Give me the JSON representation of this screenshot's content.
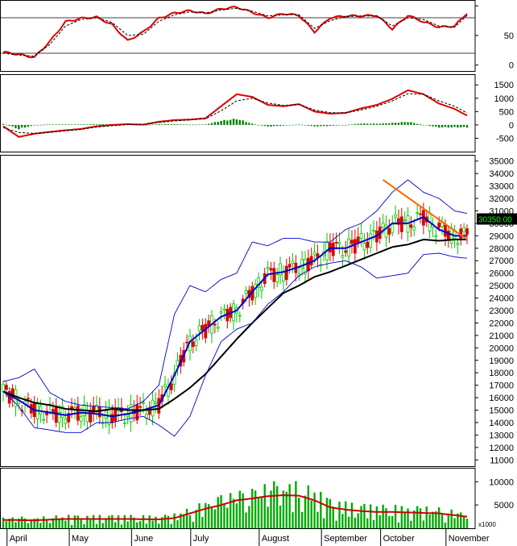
{
  "chart_data": [
    {
      "panel": "oscillator",
      "type": "line",
      "yaxis": {
        "min": -10,
        "max": 110,
        "ticks": [
          0,
          50,
          100
        ],
        "tick_labels": [
          "0",
          "50",
          ""
        ]
      },
      "reference_lines": [
        20,
        80
      ],
      "series": [
        {
          "role": "main",
          "color": "#dd0000",
          "style": "solid",
          "x": [
            0,
            5,
            10,
            15,
            20,
            25,
            30,
            35,
            40,
            45,
            50,
            55,
            60,
            65,
            70,
            75,
            80,
            85,
            90,
            95,
            100,
            105,
            110,
            115,
            120,
            125,
            130,
            135,
            140,
            145,
            149
          ],
          "y": [
            22,
            18,
            13,
            40,
            73,
            79,
            81,
            68,
            41,
            56,
            79,
            88,
            92,
            87,
            95,
            98,
            89,
            80,
            87,
            84,
            56,
            80,
            83,
            83,
            84,
            61,
            84,
            73,
            64,
            66,
            88
          ]
        },
        {
          "role": "signal",
          "color": "#000000",
          "style": "dashed",
          "x": [
            0,
            5,
            10,
            15,
            20,
            25,
            30,
            35,
            40,
            45,
            50,
            55,
            60,
            65,
            70,
            75,
            80,
            85,
            90,
            95,
            100,
            105,
            110,
            115,
            120,
            125,
            130,
            135,
            140,
            145,
            149
          ],
          "y": [
            20,
            17,
            15,
            35,
            66,
            77,
            80,
            72,
            50,
            52,
            74,
            85,
            90,
            88,
            93,
            96,
            91,
            83,
            85,
            85,
            62,
            75,
            82,
            83,
            83,
            66,
            80,
            77,
            66,
            64,
            84
          ]
        }
      ]
    },
    {
      "panel": "macd",
      "type": "line",
      "yaxis": {
        "min": -1000,
        "max": 1900,
        "ticks": [
          1500,
          1000,
          500,
          0,
          -500
        ],
        "tick_labels": [
          "1500",
          "1000",
          "500",
          "0",
          "-500"
        ]
      },
      "series": [
        {
          "role": "macd",
          "color": "#dd0000",
          "style": "solid",
          "x": [
            0,
            5,
            10,
            15,
            20,
            25,
            30,
            35,
            40,
            45,
            50,
            55,
            60,
            65,
            70,
            75,
            80,
            85,
            90,
            95,
            100,
            105,
            110,
            115,
            120,
            125,
            130,
            135,
            140,
            145,
            149
          ],
          "y": [
            -50,
            -450,
            -330,
            -260,
            -200,
            -150,
            -50,
            0,
            30,
            10,
            120,
            180,
            200,
            250,
            700,
            1150,
            1050,
            750,
            700,
            780,
            500,
            420,
            450,
            620,
            750,
            980,
            1300,
            1150,
            800,
            600,
            350
          ]
        },
        {
          "role": "signal",
          "color": "#000000",
          "style": "dashed",
          "x": [
            0,
            5,
            10,
            15,
            20,
            25,
            30,
            35,
            40,
            45,
            50,
            55,
            60,
            65,
            70,
            75,
            80,
            85,
            90,
            95,
            100,
            105,
            110,
            115,
            120,
            125,
            130,
            135,
            140,
            145,
            149
          ],
          "y": [
            -100,
            -280,
            -320,
            -280,
            -220,
            -170,
            -80,
            -30,
            10,
            20,
            90,
            150,
            190,
            230,
            530,
            900,
            1000,
            820,
            730,
            760,
            560,
            460,
            450,
            560,
            700,
            900,
            1170,
            1150,
            900,
            700,
            450
          ]
        },
        {
          "role": "histogram",
          "color": "#008000",
          "style": "bars",
          "x": [
            0,
            5,
            10,
            15,
            20,
            25,
            30,
            35,
            40,
            45,
            50,
            55,
            60,
            65,
            70,
            75,
            80,
            85,
            90,
            95,
            100,
            105,
            110,
            115,
            120,
            125,
            130,
            135,
            140,
            145,
            149
          ],
          "y": [
            50,
            -170,
            -10,
            20,
            20,
            20,
            30,
            30,
            20,
            -10,
            30,
            30,
            10,
            20,
            170,
            250,
            50,
            -70,
            -30,
            20,
            -60,
            -40,
            0,
            60,
            50,
            80,
            130,
            0,
            -100,
            -100,
            -100
          ]
        }
      ]
    },
    {
      "panel": "price",
      "type": "candlestick",
      "yaxis": {
        "min": 10500,
        "max": 35500,
        "ticks": [
          11000,
          12000,
          13000,
          14000,
          15000,
          16000,
          17000,
          18000,
          19000,
          20000,
          21000,
          22000,
          23000,
          24000,
          25000,
          26000,
          27000,
          28000,
          29000,
          30000,
          31000,
          32000,
          33000,
          34000,
          35000
        ],
        "tick_labels": [
          "11000",
          "12000",
          "13000",
          "14000",
          "15000",
          "16000",
          "17000",
          "18000",
          "19000",
          "20000",
          "21000",
          "22000",
          "23000",
          "24000",
          "25000",
          "26000",
          "27000",
          "28000",
          "29000",
          "30000",
          "31000",
          "32000",
          "33000",
          "34000",
          "35000"
        ]
      },
      "last_price_label": "30350.00",
      "overlays": [
        {
          "role": "ma-short",
          "color": "#0000cc",
          "x": [
            0,
            5,
            10,
            15,
            20,
            25,
            30,
            35,
            40,
            45,
            50,
            55,
            60,
            65,
            70,
            75,
            80,
            85,
            90,
            95,
            100,
            105,
            110,
            115,
            120,
            125,
            130,
            135,
            140,
            145,
            149
          ],
          "y": [
            16500,
            15800,
            15000,
            14800,
            14600,
            14800,
            14700,
            14500,
            14700,
            15000,
            15400,
            17800,
            20500,
            21500,
            22500,
            23000,
            24500,
            25900,
            26100,
            26500,
            27000,
            28000,
            28000,
            28500,
            29000,
            30000,
            30000,
            30500,
            29500,
            29000,
            29000
          ]
        },
        {
          "role": "ma-long",
          "color": "#000000",
          "x": [
            0,
            5,
            10,
            15,
            20,
            25,
            30,
            35,
            40,
            45,
            50,
            55,
            60,
            65,
            70,
            75,
            80,
            85,
            90,
            95,
            100,
            105,
            110,
            115,
            120,
            125,
            130,
            135,
            140,
            145,
            149
          ],
          "y": [
            16500,
            16000,
            15600,
            15400,
            15100,
            15000,
            14900,
            15100,
            15000,
            15000,
            15100,
            15900,
            16800,
            17900,
            19300,
            20700,
            22000,
            23200,
            24400,
            25000,
            25700,
            26100,
            26600,
            27100,
            27600,
            28100,
            28300,
            28700,
            28600,
            28700,
            28700
          ]
        },
        {
          "role": "band-upper",
          "color": "#0000cc",
          "x": [
            0,
            5,
            10,
            15,
            20,
            25,
            30,
            35,
            40,
            45,
            50,
            55,
            60,
            65,
            70,
            75,
            80,
            85,
            90,
            95,
            100,
            105,
            110,
            115,
            120,
            125,
            130,
            135,
            140,
            145,
            149
          ],
          "y": [
            17300,
            17600,
            18300,
            16400,
            15700,
            15400,
            15300,
            15200,
            15100,
            15700,
            17000,
            22700,
            25000,
            24500,
            25500,
            26000,
            28500,
            28200,
            28800,
            28800,
            28500,
            28500,
            29500,
            30000,
            31000,
            32500,
            33500,
            32500,
            32000,
            31000,
            30800
          ]
        },
        {
          "role": "band-lower",
          "color": "#0000cc",
          "x": [
            0,
            5,
            10,
            15,
            20,
            25,
            30,
            35,
            40,
            45,
            50,
            55,
            60,
            65,
            70,
            75,
            80,
            85,
            90,
            95,
            100,
            105,
            110,
            115,
            120,
            125,
            130,
            135,
            140,
            145,
            149
          ],
          "y": [
            16500,
            15300,
            13600,
            13400,
            13200,
            13200,
            14000,
            14000,
            14300,
            14500,
            13800,
            12900,
            14500,
            17800,
            20500,
            21500,
            22000,
            23500,
            24500,
            25800,
            26500,
            26800,
            27000,
            26500,
            25600,
            25800,
            26000,
            27500,
            27600,
            27300,
            27200
          ]
        },
        {
          "role": "trendline",
          "color": "#ff6600",
          "x": [
            122,
            149
          ],
          "y": [
            33500,
            28700
          ]
        }
      ],
      "candles_spec": {
        "count": 150,
        "up_color": "#00cc00",
        "down_color": "#dd0000"
      }
    },
    {
      "panel": "volume",
      "type": "bar",
      "yaxis": {
        "min": 0,
        "max": 13000,
        "ticks": [
          5000,
          10000
        ],
        "tick_labels": [
          "5000",
          "10000"
        ],
        "unit_label": "x1000"
      },
      "bar_color": "#00aa00",
      "ma_color": "#cc0000",
      "ma": {
        "x": [
          0,
          10,
          20,
          30,
          40,
          50,
          55,
          60,
          65,
          70,
          75,
          80,
          85,
          90,
          95,
          100,
          105,
          110,
          115,
          120,
          125,
          130,
          135,
          140,
          145,
          149
        ],
        "y": [
          1800,
          1700,
          2000,
          2000,
          2000,
          1900,
          2200,
          3200,
          4200,
          5000,
          6000,
          6400,
          6900,
          7100,
          7000,
          6000,
          4500,
          4000,
          3700,
          3500,
          3500,
          3400,
          3300,
          3200,
          2800,
          2500
        ]
      },
      "x_labels": [
        {
          "x": 2,
          "label": "April"
        },
        {
          "x": 22,
          "label": "May"
        },
        {
          "x": 42,
          "label": "June"
        },
        {
          "x": 61,
          "label": "July"
        },
        {
          "x": 83,
          "label": "August"
        },
        {
          "x": 103,
          "label": "September"
        },
        {
          "x": 122,
          "label": "October"
        },
        {
          "x": 143,
          "label": "November"
        }
      ]
    }
  ]
}
